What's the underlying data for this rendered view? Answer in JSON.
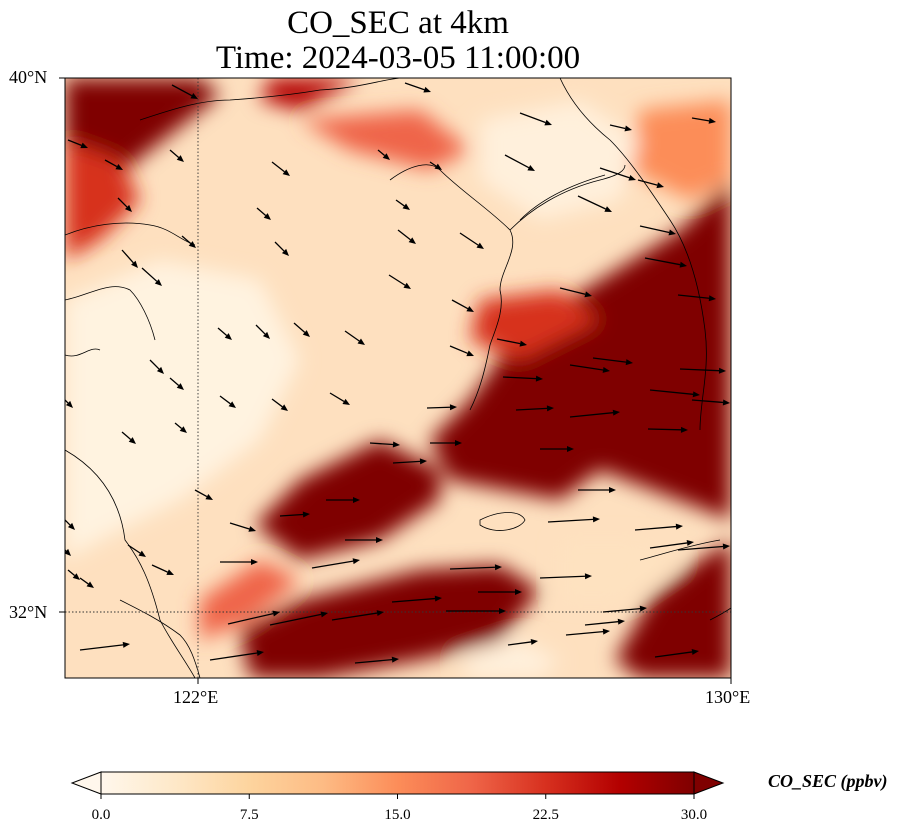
{
  "title_line1": "CO_SEC at 4km",
  "title_line2": "Time: 2024-03-05 11:00:00",
  "axes": {
    "lat_labels": [
      "40°N",
      "32°N"
    ],
    "lon_labels": [
      "122°E",
      "130°E"
    ]
  },
  "colorbar": {
    "label": "CO_SEC (ppbv)",
    "ticks": [
      "0.0",
      "7.5",
      "15.0",
      "22.5",
      "30.0"
    ],
    "range": [
      0,
      30
    ],
    "colormap": "OrRd",
    "stops": [
      "#fff7ec",
      "#fee8c8",
      "#fdd49e",
      "#fdbb84",
      "#fc8d59",
      "#ef6548",
      "#d7301f",
      "#b30000",
      "#7f0000"
    ]
  },
  "map": {
    "lon_range": [
      120,
      130
    ],
    "lat_range": [
      31,
      40
    ],
    "gridlines": {
      "lons": [
        122
      ],
      "lats": [
        32
      ],
      "style": "dotted"
    },
    "features": [
      "coastline",
      "wind-vectors"
    ]
  }
}
